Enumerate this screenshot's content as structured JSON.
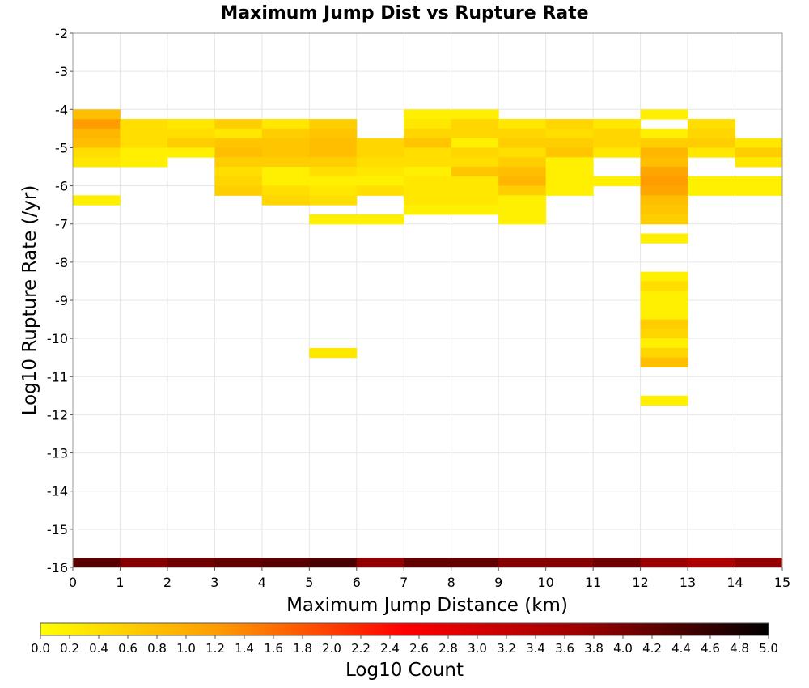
{
  "chart_data": {
    "type": "heatmap",
    "title": "Maximum Jump Dist vs Rupture Rate",
    "xlabel": "Maximum Jump Distance (km)",
    "ylabel": "Log10 Rupture Rate (/yr)",
    "xlim": [
      0,
      15
    ],
    "ylim": [
      -16,
      -2
    ],
    "x_ticks": [
      "0",
      "1",
      "2",
      "3",
      "4",
      "5",
      "6",
      "7",
      "8",
      "9",
      "10",
      "11",
      "12",
      "13",
      "14",
      "15"
    ],
    "y_ticks": [
      "-2",
      "-3",
      "-4",
      "-5",
      "-6",
      "-7",
      "-8",
      "-9",
      "-10",
      "-11",
      "-12",
      "-13",
      "-14",
      "-15",
      "-16"
    ],
    "x_bin_width": 1,
    "y_bin_height": 0.25,
    "grid": true,
    "colorbar": {
      "label": "Log10 Count",
      "min": 0,
      "max": 5,
      "ticks": [
        "0.0",
        "0.2",
        "0.4",
        "0.6",
        "0.8",
        "1.0",
        "1.2",
        "1.4",
        "1.6",
        "1.8",
        "2.0",
        "2.2",
        "2.4",
        "2.6",
        "2.8",
        "3.0",
        "3.2",
        "3.4",
        "3.6",
        "3.8",
        "4.0",
        "4.2",
        "4.4",
        "4.6",
        "4.8",
        "5.0"
      ],
      "colors": [
        "#ffff00",
        "#ff9900",
        "#ff0000",
        "#990000",
        "#000000"
      ]
    },
    "cells_note": "each cell: [x_bin_start_km, log10_rate_bin_bottom, log10_count]",
    "cells": [
      [
        0,
        -4.25,
        0.8
      ],
      [
        0,
        -4.5,
        1.2
      ],
      [
        0,
        -4.75,
        0.9
      ],
      [
        0,
        -5.0,
        0.8
      ],
      [
        0,
        -5.25,
        0.4
      ],
      [
        0,
        -5.5,
        0.3
      ],
      [
        0,
        -6.5,
        0.2
      ],
      [
        1,
        -4.5,
        0.4
      ],
      [
        1,
        -4.75,
        0.4
      ],
      [
        1,
        -5.0,
        0.4
      ],
      [
        1,
        -5.25,
        0.2
      ],
      [
        1,
        -5.5,
        0.2
      ],
      [
        2,
        -4.5,
        0.3
      ],
      [
        2,
        -4.75,
        0.4
      ],
      [
        2,
        -5.0,
        0.6
      ],
      [
        2,
        -5.25,
        0.2
      ],
      [
        3,
        -4.5,
        0.6
      ],
      [
        3,
        -4.75,
        0.3
      ],
      [
        3,
        -5.0,
        0.7
      ],
      [
        3,
        -5.25,
        0.8
      ],
      [
        3,
        -5.5,
        0.6
      ],
      [
        3,
        -5.75,
        0.4
      ],
      [
        3,
        -6.0,
        0.5
      ],
      [
        3,
        -6.25,
        0.6
      ],
      [
        4,
        -4.5,
        0.3
      ],
      [
        4,
        -4.75,
        0.6
      ],
      [
        4,
        -5.0,
        0.7
      ],
      [
        4,
        -5.25,
        0.7
      ],
      [
        4,
        -5.5,
        0.6
      ],
      [
        4,
        -5.75,
        0.2
      ],
      [
        4,
        -6.0,
        0.2
      ],
      [
        4,
        -6.25,
        0.4
      ],
      [
        4,
        -6.5,
        0.5
      ],
      [
        5,
        -4.5,
        0.6
      ],
      [
        5,
        -4.75,
        0.7
      ],
      [
        5,
        -5.0,
        0.8
      ],
      [
        5,
        -5.25,
        0.8
      ],
      [
        5,
        -5.5,
        0.6
      ],
      [
        5,
        -5.75,
        0.4
      ],
      [
        5,
        -6.0,
        0.2
      ],
      [
        5,
        -6.25,
        0.3
      ],
      [
        5,
        -6.5,
        0.4
      ],
      [
        5,
        -7.0,
        0.2
      ],
      [
        5,
        -10.5,
        0.3
      ],
      [
        6,
        -5.0,
        0.5
      ],
      [
        6,
        -5.25,
        0.5
      ],
      [
        6,
        -5.5,
        0.4
      ],
      [
        6,
        -5.75,
        0.3
      ],
      [
        6,
        -6.0,
        0.2
      ],
      [
        6,
        -6.25,
        0.4
      ],
      [
        6,
        -7.0,
        0.2
      ],
      [
        7,
        -4.25,
        0.2
      ],
      [
        7,
        -4.5,
        0.3
      ],
      [
        7,
        -4.75,
        0.5
      ],
      [
        7,
        -5.0,
        0.7
      ],
      [
        7,
        -5.25,
        0.4
      ],
      [
        7,
        -5.5,
        0.4
      ],
      [
        7,
        -5.75,
        0.2
      ],
      [
        7,
        -6.0,
        0.3
      ],
      [
        7,
        -6.25,
        0.3
      ],
      [
        7,
        -6.5,
        0.3
      ],
      [
        7,
        -6.75,
        0.2
      ],
      [
        8,
        -4.25,
        0.2
      ],
      [
        8,
        -4.5,
        0.5
      ],
      [
        8,
        -4.75,
        0.5
      ],
      [
        8,
        -5.0,
        0.2
      ],
      [
        8,
        -5.25,
        0.5
      ],
      [
        8,
        -5.5,
        0.4
      ],
      [
        8,
        -5.75,
        0.7
      ],
      [
        8,
        -6.0,
        0.3
      ],
      [
        8,
        -6.25,
        0.3
      ],
      [
        8,
        -6.5,
        0.3
      ],
      [
        8,
        -6.75,
        0.2
      ],
      [
        9,
        -4.5,
        0.3
      ],
      [
        9,
        -4.75,
        0.5
      ],
      [
        9,
        -5.0,
        0.6
      ],
      [
        9,
        -5.25,
        0.4
      ],
      [
        9,
        -5.5,
        0.6
      ],
      [
        9,
        -5.75,
        0.8
      ],
      [
        9,
        -6.0,
        0.9
      ],
      [
        9,
        -6.25,
        0.6
      ],
      [
        9,
        -6.5,
        0.2
      ],
      [
        9,
        -6.75,
        0.2
      ],
      [
        9,
        -7.0,
        0.2
      ],
      [
        10,
        -4.5,
        0.5
      ],
      [
        10,
        -4.75,
        0.4
      ],
      [
        10,
        -5.0,
        0.6
      ],
      [
        10,
        -5.25,
        0.7
      ],
      [
        10,
        -5.5,
        0.2
      ],
      [
        10,
        -5.75,
        0.2
      ],
      [
        10,
        -6.0,
        0.2
      ],
      [
        10,
        -6.25,
        0.2
      ],
      [
        11,
        -4.5,
        0.3
      ],
      [
        11,
        -4.75,
        0.5
      ],
      [
        11,
        -5.0,
        0.5
      ],
      [
        11,
        -5.25,
        0.3
      ],
      [
        11,
        -6.0,
        0.2
      ],
      [
        12,
        -4.25,
        0.2
      ],
      [
        12,
        -4.75,
        0.2
      ],
      [
        12,
        -5.0,
        0.6
      ],
      [
        12,
        -5.25,
        0.9
      ],
      [
        12,
        -5.5,
        0.8
      ],
      [
        12,
        -5.75,
        1.1
      ],
      [
        12,
        -6.0,
        1.2
      ],
      [
        12,
        -6.25,
        1.1
      ],
      [
        12,
        -6.5,
        0.8
      ],
      [
        12,
        -6.75,
        0.7
      ],
      [
        12,
        -7.0,
        0.6
      ],
      [
        12,
        -7.5,
        0.2
      ],
      [
        12,
        -8.5,
        0.2
      ],
      [
        12,
        -8.75,
        0.4
      ],
      [
        12,
        -9.0,
        0.2
      ],
      [
        12,
        -9.25,
        0.2
      ],
      [
        12,
        -9.5,
        0.2
      ],
      [
        12,
        -9.75,
        0.6
      ],
      [
        12,
        -10.0,
        0.5
      ],
      [
        12,
        -10.25,
        0.2
      ],
      [
        12,
        -10.5,
        0.5
      ],
      [
        12,
        -10.75,
        0.8
      ],
      [
        12,
        -11.75,
        0.2
      ],
      [
        13,
        -4.5,
        0.4
      ],
      [
        13,
        -4.75,
        0.5
      ],
      [
        13,
        -5.0,
        0.6
      ],
      [
        13,
        -5.25,
        0.3
      ],
      [
        13,
        -6.0,
        0.2
      ],
      [
        13,
        -6.25,
        0.2
      ],
      [
        14,
        -5.0,
        0.3
      ],
      [
        14,
        -5.25,
        0.6
      ],
      [
        14,
        -5.5,
        0.3
      ],
      [
        14,
        -6.0,
        0.2
      ],
      [
        14,
        -6.25,
        0.2
      ],
      [
        0,
        -16.0,
        4.3
      ],
      [
        1,
        -16.0,
        3.9
      ],
      [
        2,
        -16.0,
        4.1
      ],
      [
        3,
        -16.0,
        4.2
      ],
      [
        4,
        -16.0,
        4.3
      ],
      [
        5,
        -16.0,
        4.4
      ],
      [
        6,
        -16.0,
        3.8
      ],
      [
        7,
        -16.0,
        4.2
      ],
      [
        8,
        -16.0,
        4.2
      ],
      [
        9,
        -16.0,
        3.9
      ],
      [
        10,
        -16.0,
        3.9
      ],
      [
        11,
        -16.0,
        4.1
      ],
      [
        12,
        -16.0,
        3.7
      ],
      [
        13,
        -16.0,
        3.5
      ],
      [
        14,
        -16.0,
        3.8
      ]
    ]
  }
}
